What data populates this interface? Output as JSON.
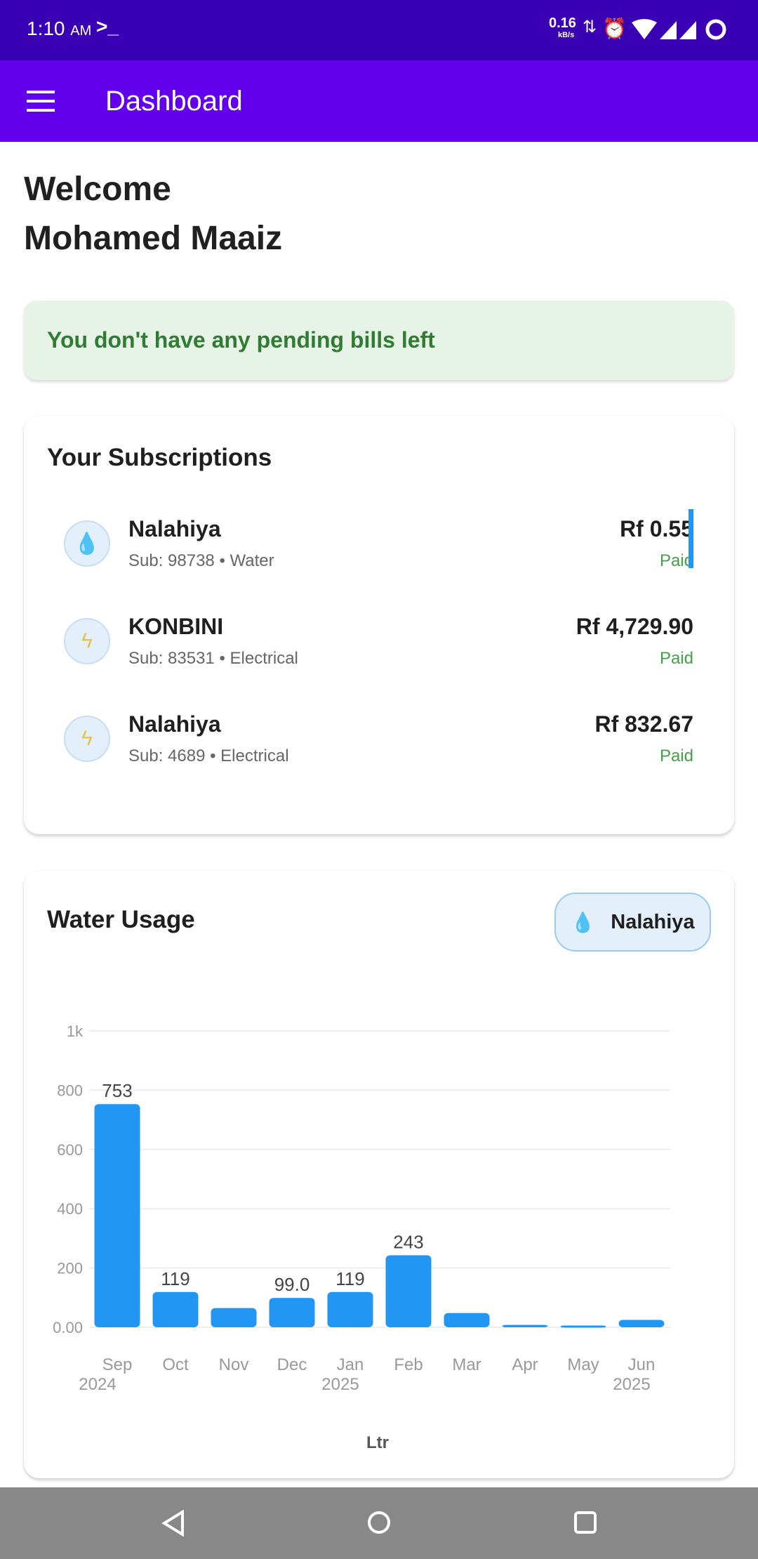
{
  "status_bar": {
    "time": "1:10",
    "ampm": "AM",
    "terminal_icon": "terminal-icon",
    "net_speed": "0.16",
    "net_unit": "kB/s"
  },
  "app_bar": {
    "title": "Dashboard",
    "menu_icon": "hamburger-icon"
  },
  "welcome": {
    "line1": "Welcome",
    "line2": "Mohamed Maaiz"
  },
  "banner": {
    "text": "You don't have any pending bills left",
    "color": "#2e7d32"
  },
  "subscriptions": {
    "title": "Your Subscriptions",
    "items": [
      {
        "name": "Nalahiya",
        "sub": "Sub: 98738 • Water",
        "amount": "Rf 0.55",
        "status": "Paid",
        "icon": "water-drop-icon",
        "selected": true
      },
      {
        "name": "KONBINI",
        "sub": "Sub: 83531 • Electrical",
        "amount": "Rf 4,729.90",
        "status": "Paid",
        "icon": "lightning-icon",
        "selected": false
      },
      {
        "name": "Nalahiya",
        "sub": "Sub: 4689 • Electrical",
        "amount": "Rf 832.67",
        "status": "Paid",
        "icon": "lightning-icon",
        "selected": false
      }
    ]
  },
  "water_usage": {
    "title": "Water Usage",
    "chip_label": "Nalahiya"
  },
  "chart_data": {
    "type": "bar",
    "categories": [
      "Sep",
      "Oct",
      "Nov",
      "Dec",
      "Jan",
      "Feb",
      "Mar",
      "Apr",
      "May",
      "Jun"
    ],
    "category_sublabels": [
      "2024",
      "",
      "",
      "",
      "2025",
      "",
      "",
      "",
      "",
      "2025"
    ],
    "values": [
      753,
      119,
      65,
      99,
      119,
      243,
      48,
      8,
      6,
      25
    ],
    "data_labels": [
      "753",
      "119",
      "",
      "99.0",
      "119",
      "243",
      "",
      "",
      "",
      ""
    ],
    "yticks": [
      "0.00",
      "200",
      "400",
      "600",
      "800",
      "1k"
    ],
    "ylim": [
      0,
      1000
    ],
    "xlabel": "Ltr",
    "grid": true,
    "bar_color": "#2196f3"
  },
  "colors": {
    "status_bar": "#3a00b3",
    "app_bar": "#6200ee",
    "paid": "#43a047",
    "accent": "#2196f3"
  }
}
